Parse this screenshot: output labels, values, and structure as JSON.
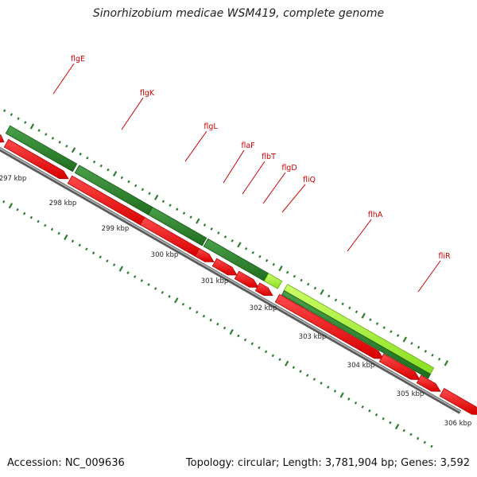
{
  "title": "Sinorhizobium medicae WSM419, complete genome",
  "footer": {
    "accession": "Accession: NC_009636",
    "summary": "Topology: circular; Length: 3,781,904 bp; Genes: 3,592"
  },
  "colors": {
    "gene_red": "#ff0000",
    "gene_red_dark": "#b00000",
    "feature_green": "#2e8b2e",
    "feature_green_dark": "#115511",
    "feature_lime": "#99ee33",
    "backbone_gray": "#888888",
    "tick_green": "#2e7d32",
    "label_red": "#cc0000",
    "kbp_text": "#222222"
  },
  "scale_labels": [
    "297 kbp",
    "298 kbp",
    "299 kbp",
    "300 kbp",
    "301 kbp",
    "302 kbp",
    "303 kbp",
    "304 kbp",
    "305 kbp",
    "306 kbp"
  ],
  "gene_labels": [
    "flgE",
    "flgK",
    "flgL",
    "flaF",
    "flbT",
    "flgD",
    "fliQ",
    "flhA",
    "fliR"
  ]
}
